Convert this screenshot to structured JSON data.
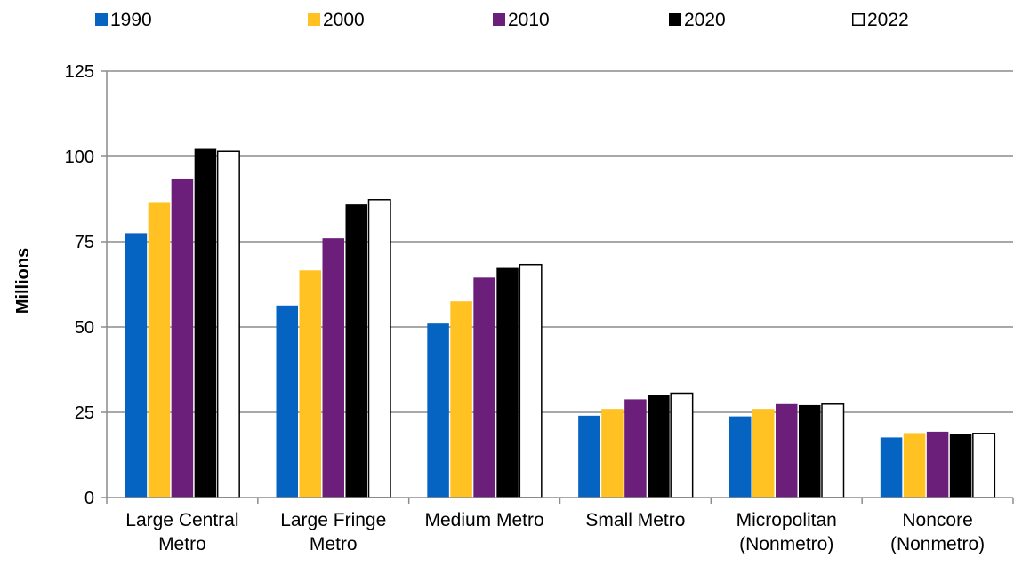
{
  "chart_data": {
    "type": "bar",
    "title": "",
    "xlabel": "",
    "ylabel": "Millions",
    "ylim": [
      0,
      125
    ],
    "yticks": [
      0,
      25,
      50,
      75,
      100,
      125
    ],
    "grid": true,
    "legend_position": "top",
    "categories": [
      [
        "Large Central",
        "Metro"
      ],
      [
        "Large Fringe",
        "Metro"
      ],
      [
        "Medium Metro"
      ],
      [
        "Small Metro"
      ],
      [
        "Micropolitan",
        "(Nonmetro)"
      ],
      [
        "Noncore",
        "(Nonmetro)"
      ]
    ],
    "series": [
      {
        "name": "1990",
        "color": "#0563C1",
        "values": [
          77.5,
          56.3,
          51.0,
          24.0,
          23.8,
          17.6
        ]
      },
      {
        "name": "2000",
        "color": "#FFC222",
        "values": [
          86.6,
          66.6,
          57.5,
          26.0,
          26.0,
          18.9
        ]
      },
      {
        "name": "2010",
        "color": "#6B1F7B",
        "values": [
          93.5,
          76.0,
          64.5,
          28.8,
          27.4,
          19.3
        ]
      },
      {
        "name": "2020",
        "color": "#000000",
        "values": [
          102.2,
          85.9,
          67.3,
          30.0,
          27.1,
          18.5
        ]
      },
      {
        "name": "2022",
        "color": "#FFFFFF",
        "values": [
          101.5,
          87.3,
          68.3,
          30.6,
          27.4,
          18.8
        ]
      }
    ]
  }
}
